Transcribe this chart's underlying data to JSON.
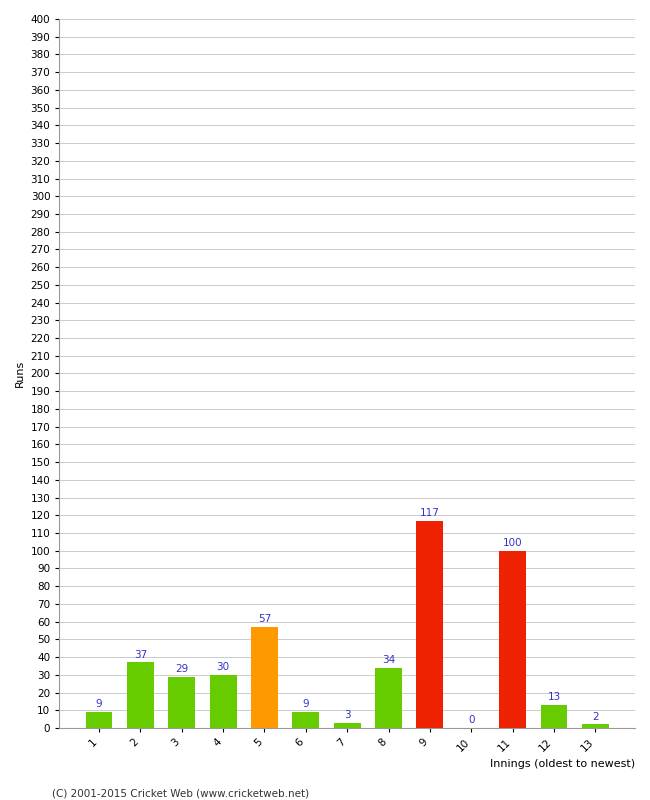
{
  "title": "",
  "xlabel": "Innings (oldest to newest)",
  "ylabel": "Runs",
  "categories": [
    1,
    2,
    3,
    4,
    5,
    6,
    7,
    8,
    9,
    10,
    11,
    12,
    13
  ],
  "values": [
    9,
    37,
    29,
    30,
    57,
    9,
    3,
    34,
    117,
    0,
    100,
    13,
    2
  ],
  "bar_colors": [
    "#66cc00",
    "#66cc00",
    "#66cc00",
    "#66cc00",
    "#ff9900",
    "#66cc00",
    "#66cc00",
    "#66cc00",
    "#ee2200",
    "#66cc00",
    "#ee2200",
    "#66cc00",
    "#66cc00"
  ],
  "label_color": "#3333cc",
  "ylim": [
    0,
    400
  ],
  "ytick_step": 10,
  "grid_color": "#cccccc",
  "background_color": "#ffffff",
  "footer": "(C) 2001-2015 Cricket Web (www.cricketweb.net)",
  "axis_label_fontsize": 8,
  "tick_fontsize": 7.5,
  "bar_label_fontsize": 7.5,
  "footer_fontsize": 7.5
}
